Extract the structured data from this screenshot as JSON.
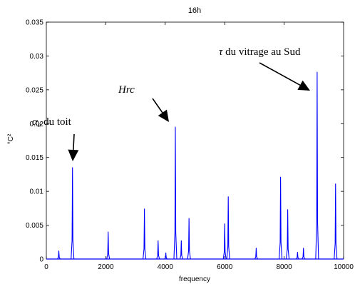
{
  "chart_data": {
    "type": "line",
    "title": "16h",
    "xlabel": "frequency",
    "ylabel": "°C²",
    "xlim": [
      0,
      10000
    ],
    "ylim": [
      0,
      0.035
    ],
    "xticks": [
      "0",
      "2000",
      "4000",
      "6000",
      "8000",
      "10000"
    ],
    "yticks": [
      "0",
      "0.005",
      "0.01",
      "0.015",
      "0.02",
      "0.025",
      "0.03",
      "0.035"
    ],
    "grid": false,
    "series_color": "#0000ff",
    "peaks": [
      {
        "x": 420,
        "y": 0.0012
      },
      {
        "x": 880,
        "y": 0.0135
      },
      {
        "x": 2080,
        "y": 0.004
      },
      {
        "x": 3300,
        "y": 0.0074
      },
      {
        "x": 3760,
        "y": 0.0027
      },
      {
        "x": 4020,
        "y": 0.0009
      },
      {
        "x": 4340,
        "y": 0.0195
      },
      {
        "x": 4540,
        "y": 0.0027
      },
      {
        "x": 4800,
        "y": 0.006
      },
      {
        "x": 6000,
        "y": 0.0052
      },
      {
        "x": 6120,
        "y": 0.0092
      },
      {
        "x": 7060,
        "y": 0.0016
      },
      {
        "x": 7880,
        "y": 0.0121
      },
      {
        "x": 8120,
        "y": 0.0073
      },
      {
        "x": 8450,
        "y": 0.001
      },
      {
        "x": 8650,
        "y": 0.0016
      },
      {
        "x": 9110,
        "y": 0.0276
      },
      {
        "x": 9730,
        "y": 0.0111
      }
    ],
    "annotations": [
      {
        "symbol": "α",
        "subscript": "e",
        "text": " du toit",
        "x": 880,
        "y": 0.0135
      },
      {
        "symbol": "",
        "subscript": "",
        "text": "Hrc",
        "x": 4340,
        "y": 0.0195
      },
      {
        "symbol": "τ",
        "subscript": "",
        "text": " du vitrage au Sud",
        "x": 9110,
        "y": 0.0276
      }
    ]
  }
}
